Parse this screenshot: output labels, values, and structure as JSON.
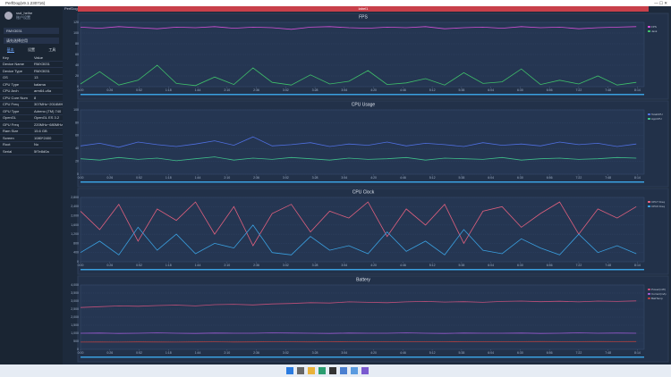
{
  "window_title": "PerfDog(v9.1.230716)",
  "user": {
    "name": "ssd_heihe",
    "sub": "账户设置"
  },
  "device": "RMX3031",
  "app": "请先选择应用",
  "tabs": [
    "基本",
    "设置",
    "工具"
  ],
  "info": [
    [
      "Key",
      "Value"
    ],
    [
      "Device Name",
      "RMX3031"
    ],
    [
      "Device Type",
      "RMX3031"
    ],
    [
      "OS",
      "13"
    ],
    [
      "CPU Type",
      "kalama"
    ],
    [
      "CPU Arch",
      "arm64-v8a"
    ],
    [
      "CPU Core Num",
      "8"
    ],
    [
      "CPU Freq",
      "307MHz~2016MHz"
    ],
    [
      "GPU Type",
      "Adreno (TM) 740"
    ],
    [
      "OpenGL",
      "OpenGL ES 3.2"
    ],
    [
      "GPU Freq",
      "220MHz~680MHz"
    ],
    [
      "Ram Size",
      "15.6 GB"
    ],
    [
      "Screen",
      "1080*2400"
    ],
    [
      "Root",
      "No"
    ],
    [
      "Serial",
      "5f7e8d0a"
    ]
  ],
  "top_tab": "PerfDog",
  "label": "label1",
  "timeline": {
    "xlim": [
      0,
      500
    ],
    "x": [
      0,
      17,
      34,
      51,
      68,
      85,
      102,
      119,
      136,
      153,
      170,
      187,
      204,
      221,
      238,
      255,
      272,
      289,
      306,
      323,
      340,
      357,
      374,
      391,
      408,
      425,
      442,
      459,
      476,
      493
    ],
    "xticks": [
      {
        "value": 0,
        "label": "0:00"
      },
      {
        "value": 26,
        "label": "0:26"
      },
      {
        "value": 52,
        "label": "0:52"
      },
      {
        "value": 78,
        "label": "1:18"
      },
      {
        "value": 104,
        "label": "1:44"
      },
      {
        "value": 130,
        "label": "2:10"
      },
      {
        "value": 156,
        "label": "2:36"
      },
      {
        "value": 182,
        "label": "3:02"
      },
      {
        "value": 208,
        "label": "3:28"
      },
      {
        "value": 234,
        "label": "3:54"
      },
      {
        "value": 260,
        "label": "4:20"
      },
      {
        "value": 286,
        "label": "4:46"
      },
      {
        "value": 312,
        "label": "5:12"
      },
      {
        "value": 338,
        "label": "5:38"
      },
      {
        "value": 364,
        "label": "6:04"
      },
      {
        "value": 390,
        "label": "6:30"
      },
      {
        "value": 416,
        "label": "6:56"
      },
      {
        "value": 442,
        "label": "7:22"
      },
      {
        "value": 468,
        "label": "7:48"
      },
      {
        "value": 494,
        "label": "8:14"
      }
    ]
  },
  "chart_data": [
    {
      "type": "line",
      "title": "FPS",
      "ylim": [
        0,
        120
      ],
      "yticks": [
        0,
        20,
        40,
        60,
        80,
        100,
        120
      ],
      "grid": true,
      "series": [
        {
          "name": "FPS",
          "color": "#d24fd6",
          "values": [
            111,
            109,
            112,
            110,
            108,
            111,
            110,
            112,
            109,
            111,
            110,
            107,
            111,
            112,
            110,
            109,
            111,
            110,
            112,
            108,
            110,
            111,
            109,
            112,
            110,
            111,
            108,
            110,
            111,
            112
          ]
        },
        {
          "name": "Jank",
          "color": "#3fbf6a",
          "values": [
            5,
            28,
            3,
            12,
            40,
            6,
            2,
            18,
            4,
            35,
            8,
            3,
            22,
            5,
            10,
            30,
            4,
            7,
            15,
            3,
            26,
            6,
            9,
            33,
            4,
            12,
            5,
            20,
            3,
            8
          ]
        }
      ]
    },
    {
      "type": "line",
      "title": "CPU Usage",
      "ylim": [
        0,
        100
      ],
      "yticks": [
        0,
        20,
        40,
        60,
        80,
        100
      ],
      "grid": true,
      "series": [
        {
          "name": "TotalCPU",
          "color": "#4f6fe0",
          "values": [
            44,
            48,
            42,
            50,
            46,
            43,
            47,
            52,
            45,
            58,
            44,
            46,
            49,
            43,
            47,
            45,
            50,
            44,
            48,
            46,
            43,
            49,
            45,
            47,
            44,
            50,
            46,
            48,
            43,
            47
          ]
        },
        {
          "name": "AppCPU",
          "color": "#3fbf8a",
          "values": [
            24,
            22,
            26,
            23,
            25,
            21,
            24,
            27,
            22,
            25,
            23,
            26,
            24,
            22,
            25,
            23,
            24,
            26,
            22,
            25,
            24,
            23,
            26,
            22,
            24,
            25,
            23,
            24,
            26,
            25
          ]
        }
      ]
    },
    {
      "type": "line",
      "title": "CPU Clock",
      "ylim": [
        0,
        2800
      ],
      "yticks": [
        0,
        400,
        800,
        {
          "value": 1200,
          "label": "1,200"
        },
        {
          "value": 1600,
          "label": "1,600"
        },
        {
          "value": 2000,
          "label": "2,000"
        },
        {
          "value": 2400,
          "label": "2,400"
        },
        {
          "value": 2800,
          "label": "2,800"
        }
      ],
      "grid": true,
      "series": [
        {
          "name": "CPU7 Freq",
          "color": "#e0607e",
          "values": [
            2200,
            1400,
            2500,
            900,
            2300,
            1800,
            2600,
            1200,
            2400,
            700,
            2100,
            2500,
            1300,
            2200,
            1900,
            2600,
            1100,
            2300,
            1600,
            2500,
            800,
            2200,
            2400,
            1500,
            2100,
            2600,
            1200,
            2300,
            1900,
            2400
          ]
        },
        {
          "name": "CPU0 Freq",
          "color": "#3aa0e0",
          "values": [
            400,
            900,
            300,
            1500,
            500,
            1200,
            350,
            800,
            600,
            1600,
            400,
            300,
            1100,
            500,
            700,
            350,
            1300,
            450,
            900,
            300,
            1400,
            500,
            350,
            1000,
            600,
            300,
            1200,
            400,
            700,
            350
          ]
        }
      ]
    },
    {
      "type": "line",
      "title": "Battery",
      "ylim": [
        0,
        4000
      ],
      "yticks": [
        0,
        500,
        {
          "value": 1000,
          "label": "1,000"
        },
        {
          "value": 1500,
          "label": "1,500"
        },
        {
          "value": 2000,
          "label": "2,000"
        },
        {
          "value": 2500,
          "label": "2,500"
        },
        {
          "value": 3000,
          "label": "3,000"
        },
        {
          "value": 3500,
          "label": "3,500"
        },
        {
          "value": 4000,
          "label": "4,000"
        }
      ],
      "grid": true,
      "series": [
        {
          "name": "Power(mW)",
          "color": "#c0507a",
          "values": [
            2600,
            2650,
            2700,
            2680,
            2720,
            2750,
            2700,
            2780,
            2800,
            2760,
            2820,
            2850,
            2900,
            2880,
            2950,
            2920,
            2900,
            2950,
            2980,
            2940,
            2960,
            2920,
            2980,
            3000,
            2960,
            2990,
            2950,
            3000,
            2980,
            3010
          ]
        },
        {
          "name": "Current(mA)",
          "color": "#9a5ad0",
          "values": [
            1000,
            1010,
            990,
            1000,
            1020,
            1000,
            990,
            1010,
            1000,
            1000,
            1020,
            1010,
            1000,
            990,
            1010,
            1000,
            1000,
            1020,
            1000,
            990,
            1010,
            1000,
            1000,
            1010,
            990,
            1000,
            1020,
            1000,
            1010,
            1000
          ]
        },
        {
          "name": "BattTemp",
          "color": "#b04040",
          "values": [
            450,
            455,
            450,
            460,
            455,
            450,
            460,
            465,
            455,
            460,
            470,
            465,
            460,
            470,
            475,
            470,
            465,
            475,
            480,
            470,
            475,
            480,
            475,
            480,
            485,
            480,
            475,
            485,
            480,
            485
          ]
        }
      ]
    }
  ]
}
